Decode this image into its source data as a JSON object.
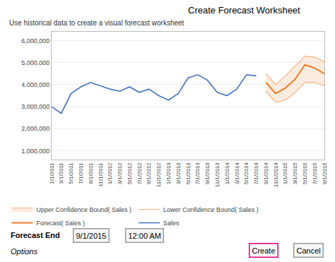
{
  "chart_data": {
    "type": "line",
    "title": "Create Forecast Worksheet",
    "subtitle": "Use historical data to create a visual forecast worksheet",
    "categories": [
      "1/1/2011",
      "3/1/2011",
      "5/1/2011",
      "7/1/2011",
      "9/1/2011",
      "11/1/2011",
      "1/1/2012",
      "3/1/2012",
      "5/1/2012",
      "7/1/2012",
      "9/1/2012",
      "11/1/2012",
      "1/1/2013",
      "3/1/2013",
      "5/1/2013",
      "7/1/2013",
      "9/1/2013",
      "11/1/2013",
      "1/1/2014",
      "3/1/2014",
      "5/1/2014",
      "7/1/2014",
      "9/1/2014",
      "11/1/2014",
      "1/1/2015",
      "3/1/2015",
      "5/1/2015",
      "7/1/2015",
      "9/1/2015"
    ],
    "series": [
      {
        "name": "Sales",
        "color": "#4472C4",
        "values": [
          3000000,
          2700000,
          3600000,
          3900000,
          4100000,
          3950000,
          3800000,
          3700000,
          3900000,
          3650000,
          3800000,
          3500000,
          3300000,
          3600000,
          4300000,
          4450000,
          4200000,
          3650000,
          3500000,
          3800000,
          4450000,
          4400000,
          null,
          null,
          null,
          null,
          null,
          null,
          null
        ]
      },
      {
        "name": "Forecast( Sales )",
        "color": "#ED7D31",
        "values": [
          null,
          null,
          null,
          null,
          null,
          null,
          null,
          null,
          null,
          null,
          null,
          null,
          null,
          null,
          null,
          null,
          null,
          null,
          null,
          null,
          null,
          null,
          4100000,
          3600000,
          3850000,
          4250000,
          4900000,
          4750000,
          4500000
        ]
      },
      {
        "name": "Lower Confidence Bound( Sales )",
        "color": "#F4B183",
        "values": [
          null,
          null,
          null,
          null,
          null,
          null,
          null,
          null,
          null,
          null,
          null,
          null,
          null,
          null,
          null,
          null,
          null,
          null,
          null,
          null,
          null,
          null,
          3700000,
          3200000,
          3300000,
          3650000,
          4100000,
          4100000,
          3950000
        ]
      },
      {
        "name": "Upper Confidence Bound( Sales )",
        "color": "#F4B183",
        "values": [
          null,
          null,
          null,
          null,
          null,
          null,
          null,
          null,
          null,
          null,
          null,
          null,
          null,
          null,
          null,
          null,
          null,
          null,
          null,
          null,
          null,
          null,
          4500000,
          4000000,
          4400000,
          4850000,
          5300000,
          5250000,
          5050000
        ]
      }
    ],
    "ylim": [
      600000,
      6400000
    ],
    "yticks": [
      {
        "value": 1000000,
        "label": "1,000,000"
      },
      {
        "value": 2000000,
        "label": "2,000,000"
      },
      {
        "value": 3000000,
        "label": "3,000,000"
      },
      {
        "value": 4000000,
        "label": "4,000,000"
      },
      {
        "value": 5000000,
        "label": "5,000,000"
      },
      {
        "value": 6000000,
        "label": "6,000,000"
      }
    ],
    "grid": true,
    "legend": "bottom",
    "annotations": [
      "Forecast End",
      "9/1/2015",
      "12:00 AM",
      "Options",
      "Create",
      "Cancel"
    ]
  }
}
